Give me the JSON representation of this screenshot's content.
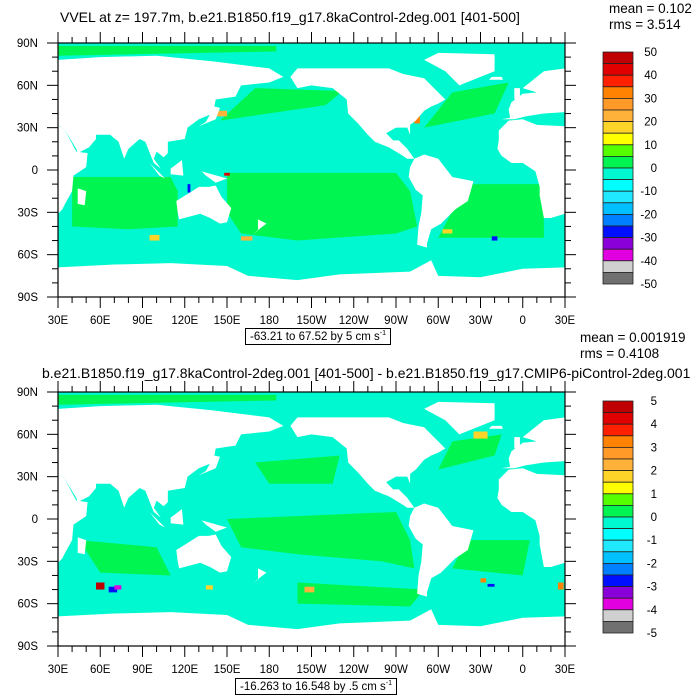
{
  "axes": {
    "lat_labels": [
      "90N",
      "60N",
      "30N",
      "0",
      "30S",
      "60S",
      "90S"
    ],
    "lon_labels": [
      "30E",
      "60E",
      "90E",
      "120E",
      "150E",
      "180",
      "150W",
      "120W",
      "90W",
      "60W",
      "30W",
      "0",
      "30E"
    ]
  },
  "plots": [
    {
      "title": "VVEL at z= 197.7m, b.e21.B1850.f19_g17.8kaControl-2deg.001 [401-500]",
      "mean": "mean = 0.102",
      "rms": "rms = 3.514",
      "range": "-63.21 to 67.52 by 5 cm s",
      "range_sup": "-1",
      "colorbar_labels": [
        "50",
        "40",
        "30",
        "20",
        "10",
        "0",
        "-10",
        "-20",
        "-30",
        "-40",
        "-50"
      ]
    },
    {
      "title": "b.e21.B1850.f19_g17.8kaControl-2deg.001 [401-500] - b.e21.B1850.f19_g17.CMIP6-piControl-2deg.001",
      "mean": "mean = 0.001919",
      "rms": "rms = 0.4108",
      "range": "-16.263 to 16.548 by .5 cm s",
      "range_sup": "-1",
      "colorbar_labels": [
        "5",
        "4",
        "3",
        "2",
        "1",
        "0",
        "-1",
        "-2",
        "-3",
        "-4",
        "-5"
      ]
    }
  ],
  "colors": {
    "colorbar": [
      "#c00000",
      "#e00000",
      "#ff2000",
      "#ff8200",
      "#ff9a28",
      "#ffb23a",
      "#ffd428",
      "#ffff00",
      "#55ff00",
      "#00f550",
      "#00f8d0",
      "#00ffff",
      "#20e8ff",
      "#00c0ff",
      "#0080ff",
      "#0010ff",
      "#8a00d8",
      "#e000e0",
      "#d0d0d0",
      "#707070"
    ],
    "ocean_pos": "#00f550",
    "ocean_neg": "#00f8d0",
    "land": "#ffffff"
  },
  "chart_data": [
    {
      "type": "heatmap",
      "title": "VVEL at z= 197.7m, b.e21.B1850.f19_g17.8kaControl-2deg.001 [401-500]",
      "stats": {
        "mean": 0.102,
        "rms": 3.514
      },
      "contour_min": -63.21,
      "contour_max": 67.52,
      "contour_interval": 5,
      "units": "cm s-1",
      "levels": [
        -50,
        -45,
        -40,
        -35,
        -30,
        -25,
        -20,
        -15,
        -10,
        -5,
        0,
        5,
        10,
        15,
        20,
        25,
        30,
        35,
        40,
        45,
        50
      ],
      "xlim": [
        "30E",
        "30E"
      ],
      "ylim": [
        "90S",
        "90N"
      ]
    },
    {
      "type": "heatmap",
      "title": "b.e21.B1850.f19_g17.8kaControl-2deg.001 [401-500] - b.e21.B1850.f19_g17.CMIP6-piControl-2deg.001",
      "stats": {
        "mean": 0.001919,
        "rms": 0.4108
      },
      "contour_min": -16.263,
      "contour_max": 16.548,
      "contour_interval": 0.5,
      "units": "cm s-1",
      "levels": [
        -5,
        -4.5,
        -4,
        -3.5,
        -3,
        -2.5,
        -2,
        -1.5,
        -1,
        -0.5,
        0,
        0.5,
        1,
        1.5,
        2,
        2.5,
        3,
        3.5,
        4,
        4.5,
        5
      ],
      "xlim": [
        "30E",
        "30E"
      ],
      "ylim": [
        "90S",
        "90N"
      ]
    }
  ]
}
